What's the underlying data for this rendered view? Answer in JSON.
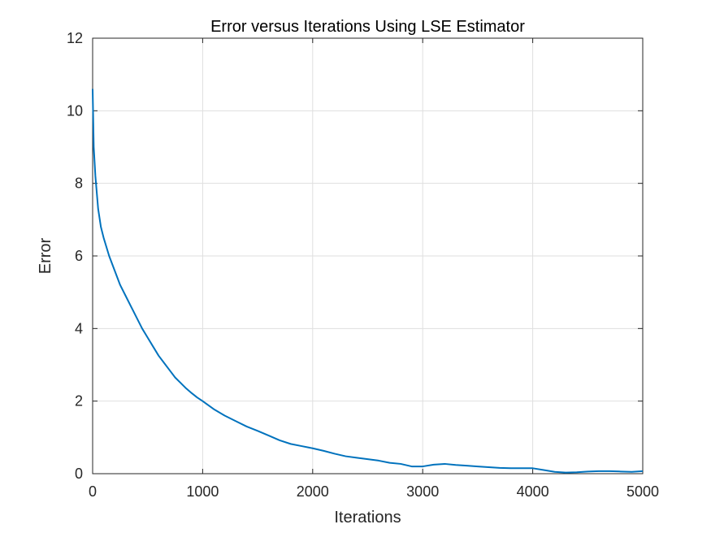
{
  "chart_data": {
    "type": "line",
    "title": "Error versus Iterations Using LSE Estimator",
    "xlabel": "Iterations",
    "ylabel": "Error",
    "xlim": [
      0,
      5000
    ],
    "ylim": [
      0,
      12
    ],
    "xticks": [
      "0",
      "1000",
      "2000",
      "3000",
      "4000",
      "5000"
    ],
    "yticks": [
      "0",
      "2",
      "4",
      "6",
      "8",
      "10",
      "12"
    ],
    "grid": true,
    "series": [
      {
        "color": "#0072bd",
        "x": [
          0,
          10,
          25,
          50,
          75,
          100,
          150,
          200,
          250,
          300,
          350,
          400,
          450,
          500,
          550,
          600,
          650,
          700,
          750,
          800,
          850,
          900,
          950,
          1000,
          1100,
          1200,
          1300,
          1400,
          1500,
          1600,
          1700,
          1800,
          1900,
          2000,
          2100,
          2200,
          2300,
          2400,
          2500,
          2600,
          2700,
          2800,
          2900,
          3000,
          3100,
          3200,
          3300,
          3400,
          3500,
          3600,
          3700,
          3800,
          3900,
          4000,
          4100,
          4200,
          4300,
          4400,
          4500,
          4600,
          4700,
          4800,
          4900,
          5000
        ],
        "y": [
          10.6,
          9.0,
          8.2,
          7.3,
          6.8,
          6.5,
          6.0,
          5.6,
          5.2,
          4.9,
          4.6,
          4.3,
          4.0,
          3.75,
          3.5,
          3.25,
          3.05,
          2.85,
          2.65,
          2.5,
          2.35,
          2.22,
          2.1,
          2.0,
          1.78,
          1.6,
          1.45,
          1.3,
          1.18,
          1.05,
          0.92,
          0.82,
          0.76,
          0.7,
          0.63,
          0.55,
          0.48,
          0.44,
          0.4,
          0.36,
          0.3,
          0.27,
          0.2,
          0.2,
          0.25,
          0.27,
          0.24,
          0.22,
          0.2,
          0.18,
          0.16,
          0.15,
          0.15,
          0.15,
          0.1,
          0.05,
          0.03,
          0.04,
          0.06,
          0.07,
          0.07,
          0.06,
          0.05,
          0.07
        ]
      }
    ]
  }
}
